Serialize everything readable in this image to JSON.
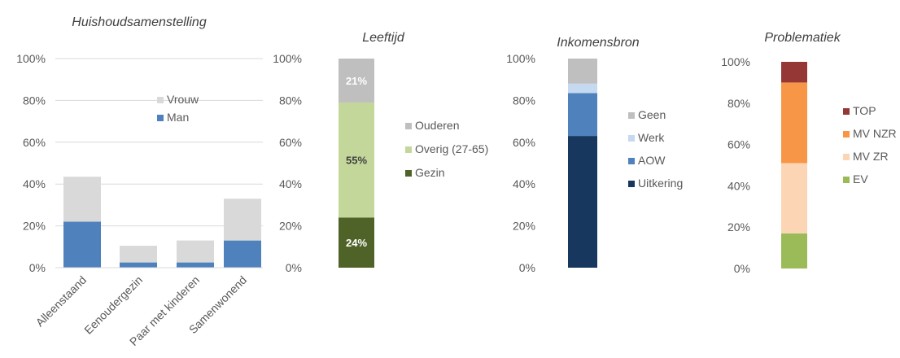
{
  "chart_data": [
    {
      "type": "bar",
      "stacked": true,
      "title": "Huishoudsamenstelling",
      "categories": [
        "Alleenstaand",
        "Eenoudergezin",
        "Paar met kinderen",
        "Samenwonend"
      ],
      "series": [
        {
          "name": "Man",
          "values": [
            22,
            2.5,
            2.5,
            13
          ],
          "color": "#4F81BD"
        },
        {
          "name": "Vrouw",
          "values": [
            21.5,
            8,
            10.5,
            20
          ],
          "color": "#D9D9D9"
        }
      ],
      "ylim": [
        0,
        100
      ],
      "yticks": [
        "0%",
        "20%",
        "40%",
        "60%",
        "80%",
        "100%"
      ],
      "legend": "inside-top-right",
      "grid": true
    },
    {
      "type": "bar",
      "stacked": true,
      "title": "Leeftijd",
      "categories": [
        ""
      ],
      "series": [
        {
          "name": "Gezin",
          "values": [
            24
          ],
          "color": "#4F6228",
          "label": "24%"
        },
        {
          "name": "Overig (27-65)",
          "values": [
            55
          ],
          "color": "#C4D79B",
          "label": "55%"
        },
        {
          "name": "Ouderen",
          "values": [
            21
          ],
          "color": "#BFBFBF",
          "label": "21%"
        }
      ],
      "ylim": [
        0,
        100
      ],
      "yticks": [
        "0%",
        "20%",
        "40%",
        "60%",
        "80%",
        "100%"
      ],
      "legend": "right",
      "grid": false
    },
    {
      "type": "bar",
      "stacked": true,
      "title": "Inkomensbron",
      "categories": [
        ""
      ],
      "series": [
        {
          "name": "Uitkering",
          "values": [
            63
          ],
          "color": "#17375E"
        },
        {
          "name": "AOW",
          "values": [
            20.5
          ],
          "color": "#4F81BD"
        },
        {
          "name": "Werk",
          "values": [
            4.5
          ],
          "color": "#C5D9F1"
        },
        {
          "name": "Geen",
          "values": [
            12
          ],
          "color": "#BFBFBF"
        }
      ],
      "ylim": [
        0,
        100
      ],
      "yticks": [
        "0%",
        "20%",
        "40%",
        "60%",
        "80%",
        "100%"
      ],
      "legend": "right",
      "grid": false
    },
    {
      "type": "bar",
      "stacked": true,
      "title": "Problematiek",
      "categories": [
        ""
      ],
      "series": [
        {
          "name": "EV",
          "values": [
            17
          ],
          "color": "#9BBB59"
        },
        {
          "name": "MV ZR",
          "values": [
            34
          ],
          "color": "#FCD5B5"
        },
        {
          "name": "MV NZR",
          "values": [
            39
          ],
          "color": "#F79646"
        },
        {
          "name": "TOP",
          "values": [
            10
          ],
          "color": "#953735"
        }
      ],
      "ylim": [
        0,
        100
      ],
      "yticks": [
        "0%",
        "20%",
        "40%",
        "60%",
        "80%",
        "100%"
      ],
      "legend": "right",
      "grid": false
    }
  ]
}
